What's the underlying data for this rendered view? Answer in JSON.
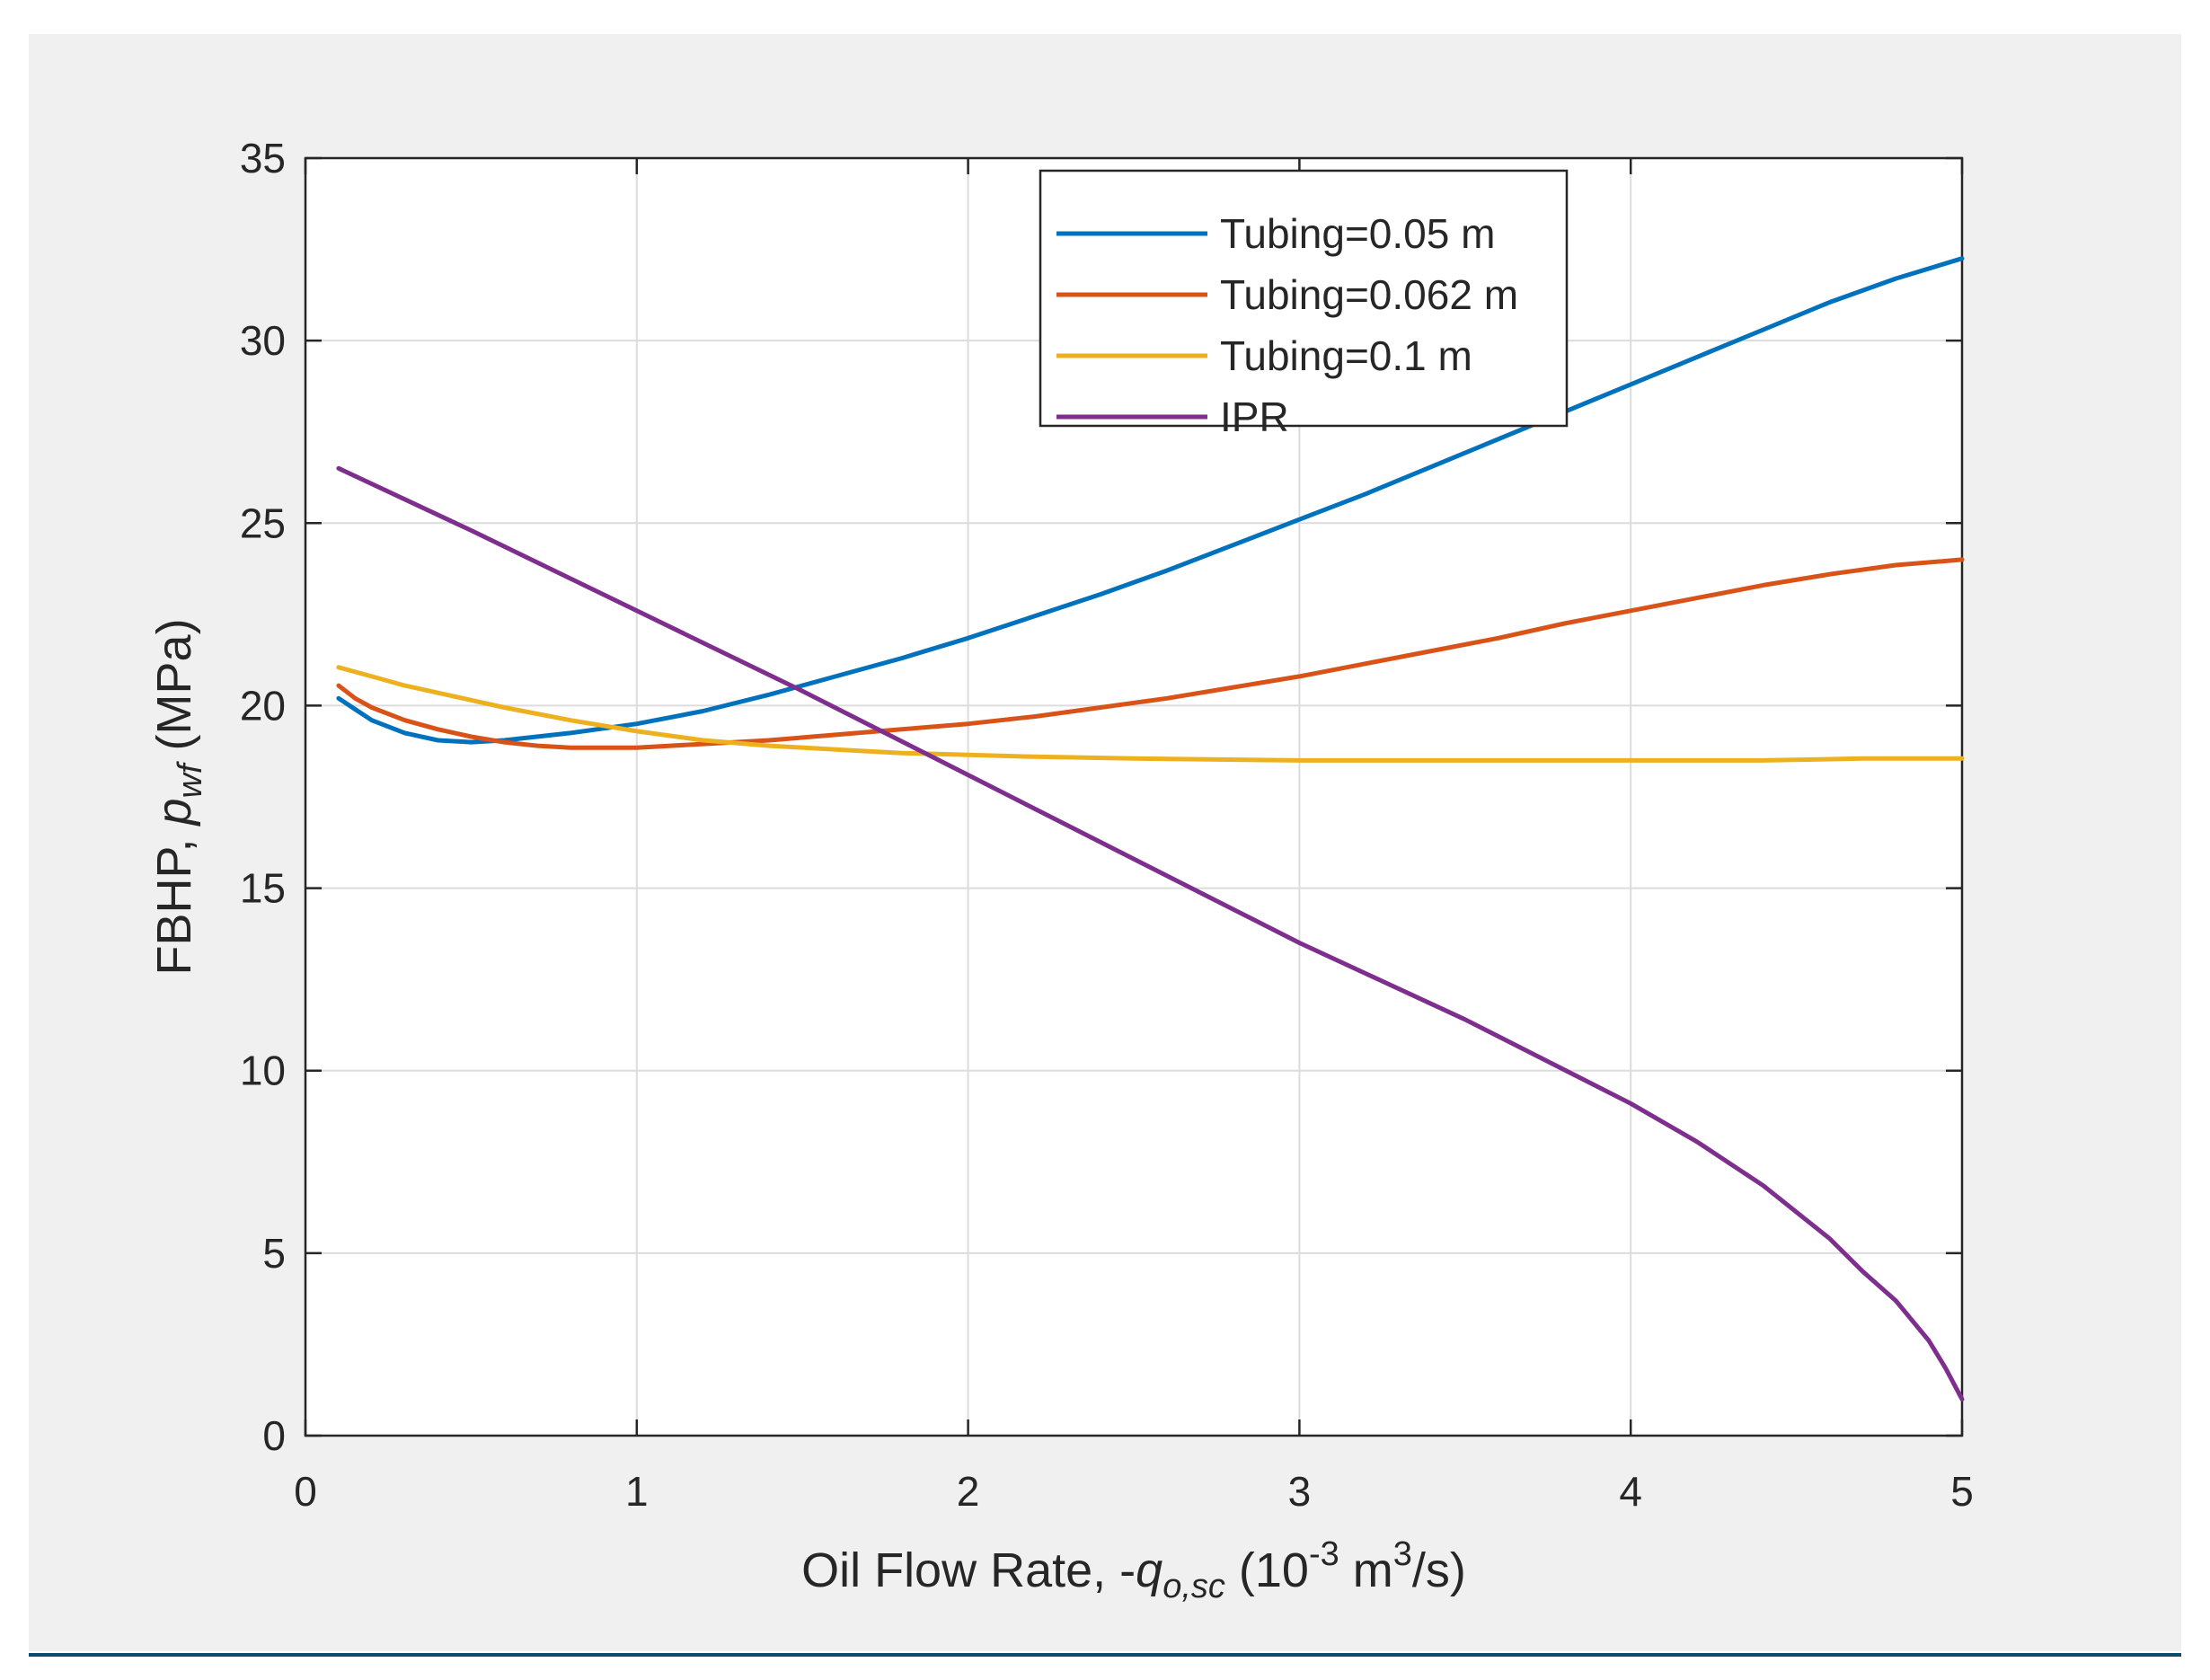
{
  "chart_data": {
    "type": "line",
    "title": "",
    "xlabel": {
      "prefix": "Oil Flow Rate, -",
      "symbol": "q",
      "subscript": "o,sc",
      "unit_open": " (10",
      "unit_exp": "-3",
      "unit_mid": " m",
      "unit_exp2": "3",
      "unit_close": "/s)"
    },
    "ylabel": {
      "prefix": "FBHP, ",
      "symbol": "p",
      "subscript": "wf",
      "unit": " (MPa)"
    },
    "xlim": [
      0,
      5
    ],
    "ylim": [
      0,
      35
    ],
    "xticks": [
      0,
      1,
      2,
      3,
      4,
      5
    ],
    "yticks": [
      0,
      5,
      10,
      15,
      20,
      25,
      30,
      35
    ],
    "grid": true,
    "legend_position": "top-right",
    "series": [
      {
        "name": "Tubing=0.05 m",
        "color": "#0072BD",
        "x": [
          0.1,
          0.15,
          0.2,
          0.3,
          0.4,
          0.5,
          0.6,
          0.8,
          1.0,
          1.2,
          1.4,
          1.6,
          1.8,
          2.0,
          2.2,
          2.4,
          2.6,
          2.8,
          3.0,
          3.2,
          3.4,
          3.6,
          3.8,
          4.0,
          4.2,
          4.4,
          4.6,
          4.8,
          5.0
        ],
        "y": [
          20.2,
          19.9,
          19.6,
          19.25,
          19.05,
          19.0,
          19.05,
          19.25,
          19.5,
          19.85,
          20.3,
          20.8,
          21.3,
          21.85,
          22.45,
          23.05,
          23.7,
          24.4,
          25.1,
          25.8,
          26.55,
          27.3,
          28.05,
          28.8,
          29.55,
          30.3,
          31.05,
          31.7,
          32.25
        ]
      },
      {
        "name": "Tubing=0.062 m",
        "color": "#D95319",
        "x": [
          0.1,
          0.15,
          0.2,
          0.3,
          0.4,
          0.5,
          0.6,
          0.7,
          0.8,
          0.9,
          1.0,
          1.2,
          1.4,
          1.6,
          1.8,
          2.0,
          2.2,
          2.4,
          2.6,
          2.8,
          3.0,
          3.2,
          3.4,
          3.6,
          3.8,
          4.0,
          4.2,
          4.4,
          4.6,
          4.8,
          5.0
        ],
        "y": [
          20.55,
          20.2,
          19.95,
          19.6,
          19.35,
          19.15,
          19.0,
          18.9,
          18.85,
          18.85,
          18.85,
          18.95,
          19.05,
          19.2,
          19.35,
          19.5,
          19.7,
          19.95,
          20.2,
          20.5,
          20.8,
          21.15,
          21.5,
          21.85,
          22.25,
          22.6,
          22.95,
          23.3,
          23.6,
          23.85,
          24.0
        ]
      },
      {
        "name": "Tubing=0.1 m",
        "color": "#EDB120",
        "x": [
          0.1,
          0.2,
          0.3,
          0.4,
          0.6,
          0.8,
          1.0,
          1.2,
          1.4,
          1.6,
          1.8,
          2.0,
          2.2,
          2.5,
          3.0,
          3.5,
          4.0,
          4.4,
          4.7,
          5.0
        ],
        "y": [
          21.05,
          20.8,
          20.55,
          20.35,
          19.95,
          19.6,
          19.3,
          19.05,
          18.9,
          18.8,
          18.7,
          18.65,
          18.6,
          18.55,
          18.5,
          18.5,
          18.5,
          18.5,
          18.55,
          18.55
        ]
      },
      {
        "name": "IPR",
        "color": "#7E2F8E",
        "x": [
          0.1,
          0.5,
          1.0,
          1.5,
          2.0,
          2.5,
          3.0,
          3.5,
          4.0,
          4.2,
          4.4,
          4.6,
          4.7,
          4.8,
          4.9,
          4.95,
          5.0
        ],
        "y": [
          26.5,
          24.8,
          22.6,
          20.4,
          18.1,
          15.8,
          13.5,
          11.4,
          9.1,
          8.05,
          6.85,
          5.4,
          4.5,
          3.7,
          2.6,
          1.85,
          1.0
        ]
      }
    ]
  }
}
